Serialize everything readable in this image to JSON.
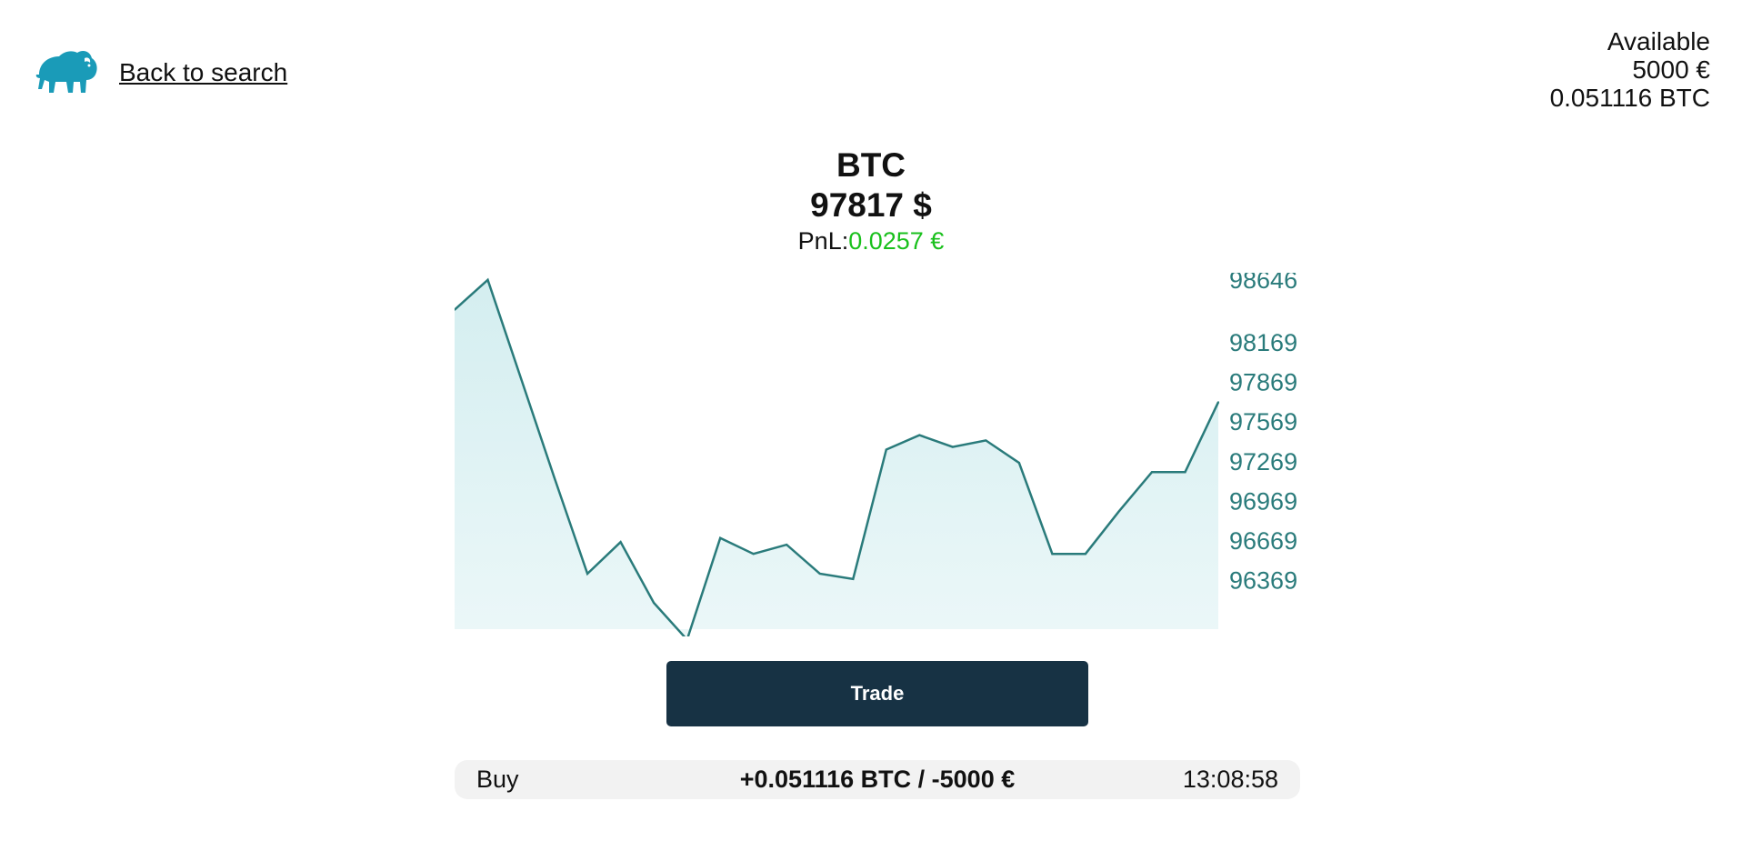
{
  "header": {
    "back_label": "Back to search",
    "logo_icon": "bison-logo-icon",
    "logo_color": "#1a9bb8"
  },
  "balance": {
    "label": "Available",
    "eur": "5000 €",
    "btc": "0.051116 BTC"
  },
  "asset": {
    "symbol": "BTC",
    "price": "97817 $",
    "pnl_label": "PnL:",
    "pnl_value": "0.0257 €",
    "pnl_color": "#19c01c"
  },
  "chart_data": {
    "type": "area",
    "line_color": "#2a7b7b",
    "fill_color": "#d4eef0",
    "ylim": [
      96000,
      98700
    ],
    "y_ticks": [
      98646,
      98169,
      97869,
      97569,
      97269,
      96969,
      96669,
      96369
    ],
    "values": [
      98420,
      98646,
      97900,
      97150,
      96420,
      96660,
      96200,
      95920,
      96690,
      96570,
      96640,
      96420,
      96380,
      97360,
      97470,
      97380,
      97430,
      97260,
      96570,
      96570,
      96890,
      97190,
      97190,
      97720
    ]
  },
  "actions": {
    "trade_label": "Trade"
  },
  "trades": [
    {
      "side": "Buy",
      "amount": "+0.051116 BTC / -5000 €",
      "time": "13:08:58"
    }
  ]
}
